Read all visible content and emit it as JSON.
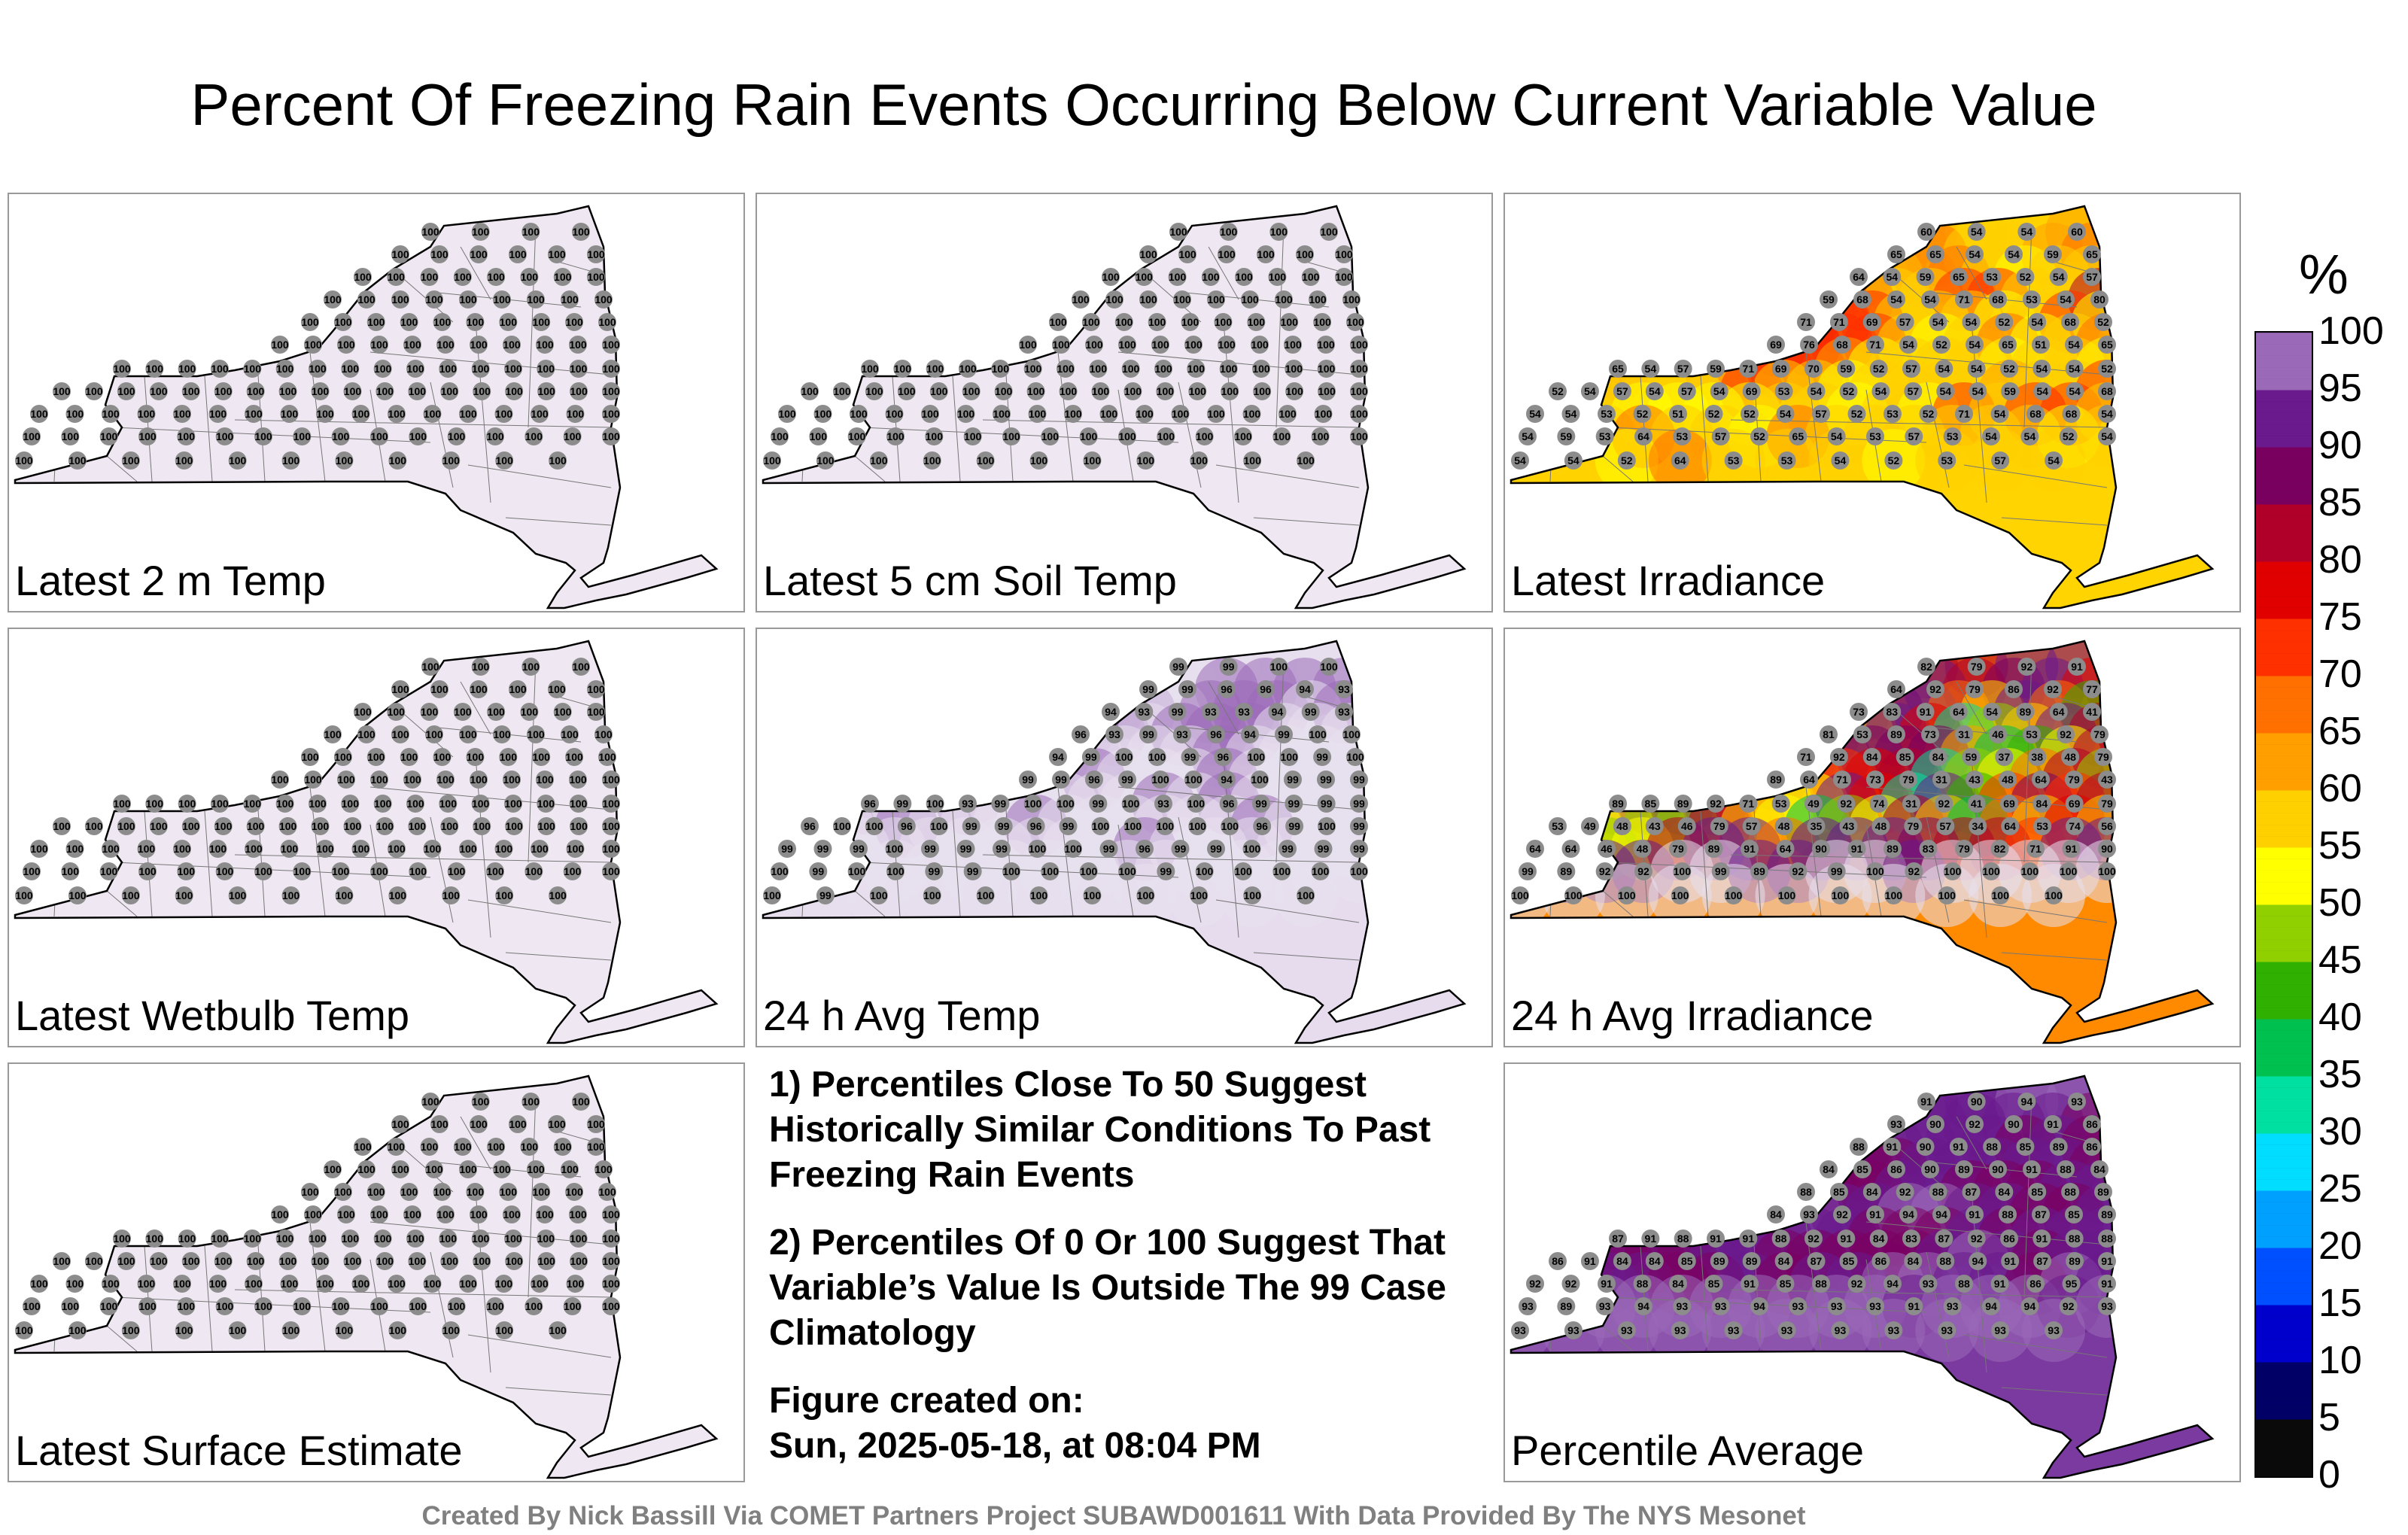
{
  "title": "Percent Of Freezing Rain Events Occurring Below Current Variable Value",
  "panels": [
    {
      "id": "p1",
      "label": "Latest 2 m Temp",
      "fill": "#efe8f2",
      "scheme": "uniform",
      "values": [
        100,
        100,
        100,
        100,
        100,
        100,
        100,
        100,
        100,
        100,
        100,
        100,
        100,
        100,
        100,
        100,
        100,
        100,
        100,
        100,
        100,
        100,
        100,
        100,
        100,
        100,
        100,
        100,
        100,
        100,
        100,
        100,
        100,
        100,
        100,
        100,
        100,
        100,
        100,
        100,
        100,
        100,
        100,
        100,
        100,
        100,
        100,
        100,
        100,
        100,
        100,
        100,
        100,
        100,
        100,
        100,
        100,
        100,
        100,
        100,
        100,
        100,
        100,
        100,
        100,
        100,
        100,
        100,
        100,
        100,
        100,
        100,
        100,
        100,
        100,
        100,
        100,
        100,
        100,
        100,
        100,
        100,
        100,
        100,
        100,
        100,
        100,
        100,
        100,
        100,
        100,
        100,
        100,
        100,
        100,
        100,
        100,
        100,
        100,
        100,
        100,
        100,
        100,
        100,
        100,
        100,
        100,
        100,
        100,
        100,
        100,
        100,
        100,
        100,
        100,
        100,
        100,
        100,
        100,
        100,
        100,
        100,
        100,
        100,
        100,
        100
      ]
    },
    {
      "id": "p2",
      "label": "Latest 5 cm Soil Temp",
      "fill": "#efe8f2",
      "scheme": "uniform",
      "values": [
        100,
        100,
        100,
        100,
        100,
        100,
        100,
        100,
        100,
        100,
        100,
        100,
        100,
        100,
        100,
        100,
        100,
        100,
        100,
        100,
        100,
        100,
        100,
        100,
        100,
        100,
        100,
        100,
        100,
        100,
        100,
        100,
        100,
        100,
        100,
        100,
        100,
        100,
        100,
        100,
        100,
        100,
        100,
        100,
        100,
        100,
        100,
        100,
        100,
        100,
        100,
        100,
        100,
        100,
        100,
        100,
        100,
        100,
        100,
        100,
        100,
        100,
        100,
        100,
        100,
        100,
        100,
        100,
        100,
        100,
        100,
        100,
        100,
        100,
        100,
        100,
        100,
        100,
        100,
        100,
        100,
        100,
        100,
        100,
        100,
        100,
        100,
        100,
        100,
        100,
        100,
        100,
        100,
        100,
        100,
        100,
        100,
        100,
        100,
        100,
        100,
        100,
        100,
        100,
        100,
        100,
        100,
        100,
        100,
        100,
        100,
        100,
        100,
        100,
        100,
        100,
        100,
        100,
        100,
        100,
        100,
        100,
        100,
        100,
        100,
        100
      ]
    },
    {
      "id": "p3",
      "label": "Latest Irradiance",
      "fill": "#ffd400",
      "scheme": "irradiance",
      "values": [
        60,
        54,
        54,
        60,
        65,
        65,
        54,
        54,
        59,
        65,
        64,
        54,
        59,
        65,
        53,
        52,
        54,
        57,
        59,
        68,
        54,
        54,
        71,
        68,
        53,
        54,
        80,
        71,
        71,
        69,
        57,
        54,
        54,
        52,
        54,
        68,
        52,
        69,
        76,
        68,
        71,
        54,
        52,
        54,
        65,
        51,
        54,
        65,
        65,
        54,
        57,
        59,
        71,
        69,
        70,
        59,
        52,
        57,
        54,
        54,
        52,
        54,
        54,
        52,
        52,
        54,
        57,
        54,
        57,
        54,
        69,
        53,
        54,
        52,
        54,
        57,
        54,
        54,
        59,
        54,
        54,
        68,
        54,
        54,
        53,
        52,
        51,
        52,
        52,
        54,
        57,
        52,
        53,
        52,
        71,
        54,
        68,
        68,
        54,
        54,
        59,
        53,
        64,
        53,
        57,
        52,
        65,
        54,
        53,
        57,
        53,
        54,
        54,
        52,
        54,
        54,
        54,
        52,
        64,
        53,
        53,
        54,
        52,
        53,
        57,
        54
      ]
    },
    {
      "id": "p4",
      "label": "Latest Wetbulb Temp",
      "fill": "#efe8f2",
      "scheme": "uniform",
      "values": [
        100,
        100,
        100,
        100,
        100,
        100,
        100,
        100,
        100,
        100,
        100,
        100,
        100,
        100,
        100,
        100,
        100,
        100,
        100,
        100,
        100,
        100,
        100,
        100,
        100,
        100,
        100,
        100,
        100,
        100,
        100,
        100,
        100,
        100,
        100,
        100,
        100,
        100,
        100,
        100,
        100,
        100,
        100,
        100,
        100,
        100,
        100,
        100,
        100,
        100,
        100,
        100,
        100,
        100,
        100,
        100,
        100,
        100,
        100,
        100,
        100,
        100,
        100,
        100,
        100,
        100,
        100,
        100,
        100,
        100,
        100,
        100,
        100,
        100,
        100,
        100,
        100,
        100,
        100,
        100,
        100,
        100,
        100,
        100,
        100,
        100,
        100,
        100,
        100,
        100,
        100,
        100,
        100,
        100,
        100,
        100,
        100,
        100,
        100,
        100,
        100,
        100,
        100,
        100,
        100,
        100,
        100,
        100,
        100,
        100,
        100,
        100,
        100,
        100,
        100,
        100,
        100,
        100,
        100,
        100,
        100,
        100,
        100,
        100,
        100,
        100
      ]
    },
    {
      "id": "p5",
      "label": "24 h Avg Temp",
      "fill": "#e6dcee",
      "scheme": "purple",
      "values": [
        99,
        99,
        100,
        100,
        99,
        99,
        96,
        96,
        94,
        93,
        94,
        93,
        99,
        93,
        93,
        94,
        99,
        93,
        96,
        93,
        99,
        93,
        96,
        94,
        99,
        100,
        100,
        94,
        99,
        100,
        100,
        99,
        96,
        100,
        100,
        99,
        100,
        99,
        99,
        96,
        99,
        100,
        100,
        94,
        100,
        99,
        99,
        99,
        96,
        99,
        100,
        93,
        99,
        100,
        100,
        99,
        100,
        93,
        100,
        96,
        99,
        99,
        99,
        99,
        96,
        100,
        100,
        96,
        100,
        99,
        99,
        96,
        99,
        100,
        100,
        100,
        100,
        100,
        96,
        99,
        100,
        99,
        99,
        99,
        99,
        100,
        99,
        99,
        99,
        100,
        100,
        99,
        96,
        99,
        99,
        100,
        99,
        99,
        99,
        100,
        99,
        100,
        100,
        99,
        99,
        100,
        100,
        100,
        100,
        99,
        100,
        100,
        100,
        100,
        100,
        100,
        99,
        100,
        100,
        100,
        100,
        100,
        100,
        100,
        100,
        100
      ]
    },
    {
      "id": "p6",
      "label": "24 h Avg Irradiance",
      "fill": "#ff8a00",
      "scheme": "irradiance",
      "values": [
        82,
        79,
        92,
        91,
        64,
        92,
        79,
        86,
        92,
        77,
        73,
        83,
        91,
        64,
        54,
        89,
        64,
        41,
        81,
        53,
        89,
        73,
        31,
        46,
        53,
        92,
        79,
        71,
        92,
        84,
        85,
        84,
        59,
        37,
        38,
        48,
        79,
        89,
        64,
        71,
        73,
        79,
        31,
        43,
        48,
        64,
        79,
        43,
        89,
        85,
        89,
        92,
        71,
        53,
        49,
        92,
        74,
        31,
        92,
        41,
        69,
        84,
        69,
        79,
        53,
        49,
        48,
        43,
        46,
        79,
        57,
        48,
        35,
        43,
        48,
        79,
        57,
        34,
        64,
        53,
        74,
        56,
        64,
        64,
        46,
        48,
        79,
        89,
        91,
        64,
        90,
        91,
        89,
        83,
        79,
        82,
        71,
        91,
        90,
        99,
        89,
        92,
        92,
        100,
        99,
        89,
        92,
        99,
        100,
        92,
        100,
        100,
        100,
        100,
        100,
        100,
        100,
        100,
        100,
        100,
        100,
        100,
        100,
        100,
        100,
        100
      ]
    },
    {
      "id": "p7",
      "label": "Latest Surface Estimate",
      "fill": "#efe8f2",
      "scheme": "uniform",
      "values": [
        100,
        100,
        100,
        100,
        100,
        100,
        100,
        100,
        100,
        100,
        100,
        100,
        100,
        100,
        100,
        100,
        100,
        100,
        100,
        100,
        100,
        100,
        100,
        100,
        100,
        100,
        100,
        100,
        100,
        100,
        100,
        100,
        100,
        100,
        100,
        100,
        100,
        100,
        100,
        100,
        100,
        100,
        100,
        100,
        100,
        100,
        100,
        100,
        100,
        100,
        100,
        100,
        100,
        100,
        100,
        100,
        100,
        100,
        100,
        100,
        100,
        100,
        100,
        100,
        100,
        100,
        100,
        100,
        100,
        100,
        100,
        100,
        100,
        100,
        100,
        100,
        100,
        100,
        100,
        100,
        100,
        100,
        100,
        100,
        100,
        100,
        100,
        100,
        100,
        100,
        100,
        100,
        100,
        100,
        100,
        100,
        100,
        100,
        100,
        100,
        100,
        100,
        100,
        100,
        100,
        100,
        100,
        100,
        100,
        100,
        100,
        100,
        100,
        100,
        100,
        100,
        100,
        100,
        100,
        100,
        100,
        100,
        100,
        100,
        100,
        100
      ]
    },
    {
      "id": "p9",
      "label": "Percentile Average",
      "fill": "#7a3aa0",
      "scheme": "purple",
      "values": [
        91,
        90,
        94,
        93,
        93,
        90,
        92,
        90,
        91,
        86,
        88,
        91,
        90,
        91,
        88,
        85,
        89,
        86,
        84,
        85,
        86,
        90,
        89,
        90,
        91,
        88,
        84,
        88,
        85,
        84,
        92,
        88,
        87,
        84,
        85,
        88,
        89,
        84,
        93,
        92,
        91,
        94,
        94,
        91,
        88,
        87,
        85,
        89,
        87,
        91,
        88,
        91,
        91,
        88,
        92,
        91,
        84,
        83,
        87,
        92,
        86,
        91,
        88,
        88,
        86,
        91,
        84,
        84,
        85,
        89,
        89,
        84,
        87,
        85,
        86,
        84,
        88,
        94,
        91,
        87,
        89,
        91,
        92,
        92,
        91,
        88,
        84,
        85,
        91,
        85,
        88,
        92,
        94,
        93,
        88,
        91,
        86,
        95,
        91,
        93,
        89,
        93,
        94,
        93,
        93,
        94,
        93,
        93,
        93,
        91,
        93,
        94,
        94,
        92,
        93,
        93,
        93,
        93,
        93,
        93,
        93,
        93,
        93,
        93,
        93,
        93
      ]
    }
  ],
  "notes": [
    "1) Percentiles Close To 50 Suggest Historically Similar Conditions To Past Freezing Rain Events",
    "2) Percentiles Of 0 Or 100 Suggest That Variable’s Value Is Outside The 99 Case Climatology"
  ],
  "figure_created_label": "Figure created on:",
  "figure_created_date": "Sun, 2025-05-18, at 08:04 PM",
  "credit": "Created By Nick Bassill Via COMET Partners Project SUBAWD001611 With Data Provided By The NYS Mesonet",
  "colorbar": {
    "unit": "%",
    "ticks": [
      0,
      5,
      10,
      15,
      20,
      25,
      30,
      35,
      40,
      45,
      50,
      55,
      60,
      65,
      70,
      75,
      80,
      85,
      90,
      95,
      100
    ],
    "colors": [
      "#0a0a0a",
      "#000066",
      "#0000cc",
      "#0050ff",
      "#00a0ff",
      "#00ddff",
      "#00e0a0",
      "#00c050",
      "#30b000",
      "#90d000",
      "#ffff00",
      "#ffd000",
      "#ffa000",
      "#ff7000",
      "#ff3000",
      "#e00000",
      "#b0002a",
      "#7a0060",
      "#6a1a8c",
      "#9a6ab8",
      "#e8e0ee"
    ]
  }
}
